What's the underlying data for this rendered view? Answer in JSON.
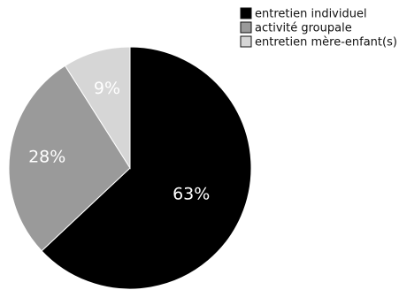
{
  "chart_data": {
    "type": "pie",
    "title": "",
    "legend_position": "top-right",
    "slices": [
      {
        "label": "entretien individuel",
        "value": 63,
        "display": "63%",
        "color": "#000000"
      },
      {
        "label": "activité groupale",
        "value": 28,
        "display": "28%",
        "color": "#9a9a9a"
      },
      {
        "label": "entretien mère-enfant(s)",
        "value": 9,
        "display": "9%",
        "color": "#d6d6d6"
      }
    ]
  }
}
